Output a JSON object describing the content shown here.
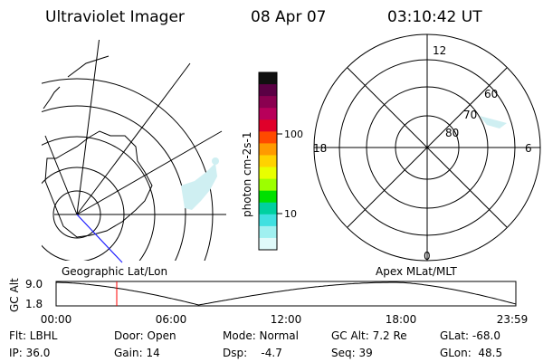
{
  "header": {
    "instrument": "Ultraviolet Imager",
    "date": "08 Apr 07",
    "time": "03:10:42 UT"
  },
  "colorbar": {
    "unit_label": "photon cm-2s-1",
    "ticks": [
      "100",
      "10"
    ],
    "colors": [
      "#101010",
      "#5a0044",
      "#8a0050",
      "#b8005a",
      "#e0002a",
      "#ff4a00",
      "#ff9a00",
      "#ffd200",
      "#e8ff00",
      "#9cff00",
      "#00e000",
      "#00d0a0",
      "#40e0e0",
      "#a0f0f0",
      "#e0fafa"
    ]
  },
  "geo_panel": {
    "label": "Geographic Lat/Lon"
  },
  "apex_panel": {
    "label": "Apex MLat/MLT",
    "mlt_labels": {
      "top": "12",
      "left": "18",
      "right": "6",
      "bottom": "0"
    },
    "lat_labels": [
      "60",
      "70",
      "80"
    ]
  },
  "timeline": {
    "axis_label": "GC Alt",
    "y_ticks": [
      "9.0",
      "1.8"
    ],
    "x_ticks": [
      "00:00",
      "06:00",
      "12:00",
      "18:00",
      "23:59"
    ],
    "marker_time": "03:10",
    "marker_color": "#ff0000"
  },
  "info": {
    "filter": "Flt: LBHL",
    "ip": "IP: 36.0",
    "door": "Door: Open",
    "gain": "Gain: 14",
    "mode": "Mode: Normal",
    "dsp": "Dsp:    -4.7",
    "gc_alt": "GC Alt: 7.2 Re",
    "seq": "Seq: 39",
    "glat": "GLat: -68.0",
    "glon": "GLon:  48.5"
  }
}
